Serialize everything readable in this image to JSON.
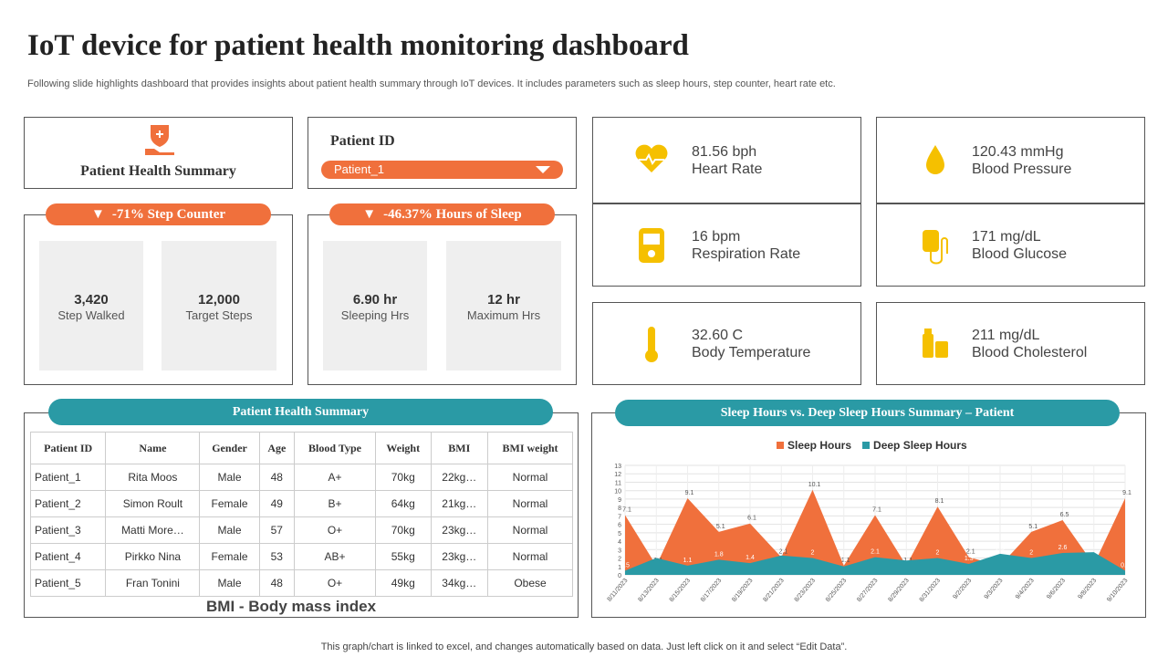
{
  "header": {
    "title": "IoT device for patient health monitoring dashboard",
    "subtitle": "Following slide highlights dashboard that provides insights about patient health summary through IoT devices. It includes parameters such as sleep hours, step counter, heart rate etc."
  },
  "summary_card": {
    "title": "Patient Health Summary"
  },
  "patient_card": {
    "label": "Patient ID",
    "selected": "Patient_1"
  },
  "step_counter": {
    "header": "-71% Step Counter",
    "stats": [
      {
        "value": "3,420",
        "label": "Step Walked"
      },
      {
        "value": "12,000",
        "label": "Target Steps"
      }
    ]
  },
  "sleep_counter": {
    "header": "-46.37% Hours of Sleep",
    "stats": [
      {
        "value": "6.90 hr",
        "label": "Sleeping Hrs"
      },
      {
        "value": "12 hr",
        "label": "Maximum Hrs"
      }
    ]
  },
  "metrics": [
    {
      "value": "81.56 bph",
      "label": "Heart Rate"
    },
    {
      "value": "120.43 mmHg",
      "label": "Blood Pressure"
    },
    {
      "value": "16 bpm",
      "label": "Respiration Rate"
    },
    {
      "value": "171 mg/dL",
      "label": "Blood Glucose"
    },
    {
      "value": "32.60 C",
      "label": "Body Temperature"
    },
    {
      "value": "211 mg/dL",
      "label": "Blood Cholesterol"
    }
  ],
  "table": {
    "title": "Patient Health Summary",
    "columns": [
      "Patient ID",
      "Name",
      "Gender",
      "Age",
      "Blood Type",
      "Weight",
      "BMI",
      "BMI weight"
    ],
    "rows": [
      [
        "Patient_1",
        "Rita Moos",
        "Male",
        "48",
        "A+",
        "70kg",
        "22kg…",
        "Normal"
      ],
      [
        "Patient_2",
        "Simon Roult",
        "Female",
        "49",
        "B+",
        "64kg",
        "21kg…",
        "Normal"
      ],
      [
        "Patient_3",
        "Matti More…",
        "Male",
        "57",
        "O+",
        "70kg",
        "23kg…",
        "Normal"
      ],
      [
        "Patient_4",
        "Pirkko Nina",
        "Female",
        "53",
        "AB+",
        "55kg",
        "23kg…",
        "Normal"
      ],
      [
        "Patient_5",
        "Fran Tonini",
        "Male",
        "48",
        "O+",
        "49kg",
        "34kg…",
        "Obese"
      ]
    ],
    "note": "BMI - Body mass index"
  },
  "chart_data": {
    "type": "area",
    "title": "Sleep Hours vs. Deep Sleep Hours Summary – Patient",
    "x": [
      "8/11/2023",
      "8/13/2023",
      "8/15/2023",
      "8/17/2023",
      "8/19/2023",
      "8/21/2023",
      "8/23/2023",
      "8/25/2023",
      "8/27/2023",
      "8/29/2023",
      "8/31/2023",
      "9/2/2023",
      "9/3/2023",
      "9/4/2023",
      "9/6/2023",
      "9/8/2023",
      "9/10/2023"
    ],
    "series": [
      {
        "name": "Sleep Hours",
        "color": "#f0703c",
        "values": [
          7.1,
          1.1,
          9.1,
          5.1,
          6.1,
          2.1,
          10.1,
          1.1,
          7.1,
          1.1,
          8.1,
          2.1,
          1.1,
          5.1,
          6.5,
          1.2,
          9.1
        ]
      },
      {
        "name": "Deep Sleep Hours",
        "color": "#2a9aa5",
        "values": [
          0.5,
          2,
          1.1,
          1.8,
          1.4,
          2.3,
          2,
          1,
          2.1,
          1.7,
          2,
          1.3,
          2.5,
          2,
          2.6,
          2.7,
          0.5
        ]
      }
    ],
    "ylim": [
      0,
      13
    ],
    "yticks": [
      0,
      1,
      2,
      3,
      4,
      5,
      6,
      7,
      8,
      9,
      10,
      11,
      12,
      13
    ],
    "grid": true,
    "legend": "top"
  },
  "footer": "This graph/chart is linked to excel, and changes automatically based on data. Just left click on it and select “Edit Data”."
}
